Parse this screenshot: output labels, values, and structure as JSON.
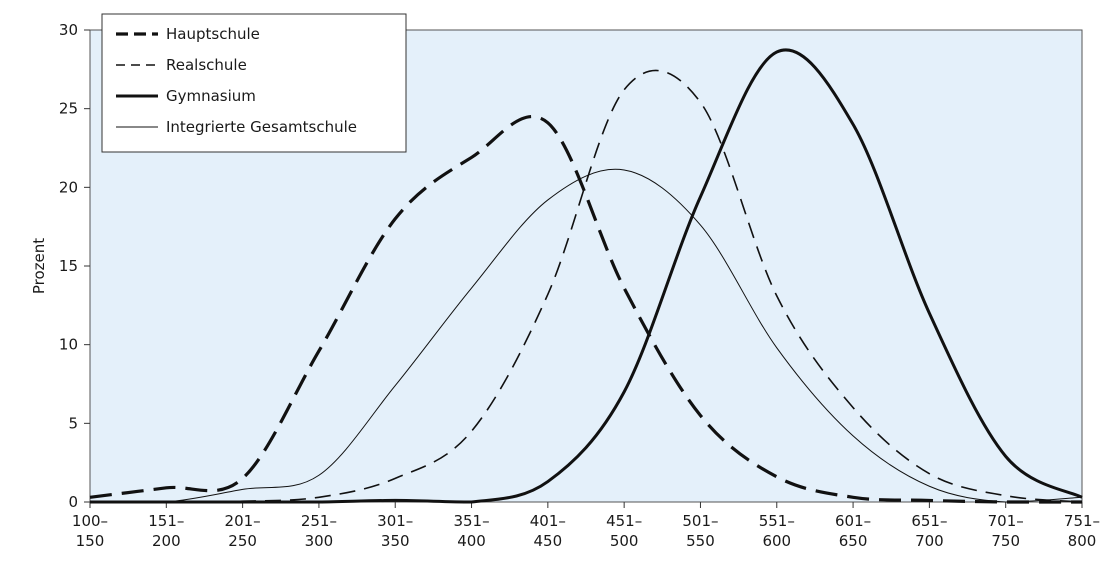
{
  "chart_data": {
    "type": "line",
    "title": "",
    "xlabel": "",
    "ylabel": "Prozent",
    "ylim": [
      0,
      30
    ],
    "yticks": [
      0,
      5,
      10,
      15,
      20,
      25,
      30
    ],
    "grid": false,
    "legend_position": "top-left",
    "background_color": "#e4f0fa",
    "categories": [
      {
        "top": "100–",
        "bottom": "150"
      },
      {
        "top": "151–",
        "bottom": "200"
      },
      {
        "top": "201–",
        "bottom": "250"
      },
      {
        "top": "251–",
        "bottom": "300"
      },
      {
        "top": "301–",
        "bottom": "350"
      },
      {
        "top": "351–",
        "bottom": "400"
      },
      {
        "top": "401–",
        "bottom": "450"
      },
      {
        "top": "451–",
        "bottom": "500"
      },
      {
        "top": "501–",
        "bottom": "550"
      },
      {
        "top": "551–",
        "bottom": "600"
      },
      {
        "top": "601–",
        "bottom": "650"
      },
      {
        "top": "651–",
        "bottom": "700"
      },
      {
        "top": "701–",
        "bottom": "750"
      },
      {
        "top": "751–",
        "bottom": "800"
      }
    ],
    "series": [
      {
        "name": "Hauptschule",
        "style": "thick-dashed",
        "values": [
          0.3,
          0.9,
          1.5,
          9.6,
          18.0,
          21.9,
          24.1,
          13.6,
          5.5,
          1.6,
          0.3,
          0.1,
          0.0,
          0.0
        ]
      },
      {
        "name": "Realschule",
        "style": "thin-dashed",
        "values": [
          0.0,
          0.0,
          0.05,
          0.3,
          1.5,
          4.5,
          13.2,
          26.2,
          25.4,
          13.1,
          6.0,
          1.8,
          0.4,
          0.0
        ]
      },
      {
        "name": "Gymnasium",
        "style": "thick-solid",
        "values": [
          0.0,
          0.0,
          0.0,
          0.0,
          0.1,
          0.0,
          1.3,
          7.0,
          19.4,
          28.6,
          24.0,
          12.0,
          2.9,
          0.3
        ]
      },
      {
        "name": "Integrierte Gesamtschule",
        "style": "thin-solid",
        "values": [
          0.0,
          0.0,
          0.8,
          1.7,
          7.4,
          13.6,
          19.2,
          21.1,
          17.6,
          9.8,
          4.2,
          1.0,
          0.0,
          0.3
        ]
      }
    ]
  }
}
